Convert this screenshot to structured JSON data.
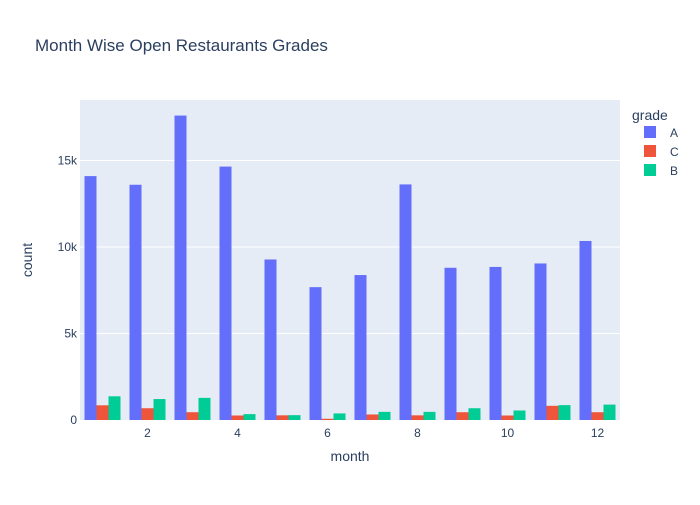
{
  "chart_data": {
    "type": "bar",
    "title": "Month Wise Open Restaurants Grades",
    "xlabel": "month",
    "ylabel": "count",
    "x": [
      1,
      2,
      3,
      4,
      5,
      6,
      7,
      8,
      9,
      10,
      11,
      12
    ],
    "x_ticks": [
      2,
      4,
      6,
      8,
      10,
      12
    ],
    "y_ticks": [
      0,
      5000,
      10000,
      15000
    ],
    "y_tick_labels": [
      "0",
      "5k",
      "10k",
      "15k"
    ],
    "ylim": [
      0,
      18500
    ],
    "xlim": [
      0.5,
      12.5
    ],
    "grid": true,
    "background_color": "#e5ecf6",
    "legend": {
      "title": "grade",
      "placement": "right"
    },
    "series": [
      {
        "name": "A",
        "color": "#636efa",
        "values": [
          14100,
          13600,
          17600,
          14650,
          9280,
          7680,
          8380,
          13620,
          8800,
          8850,
          9050,
          10350
        ]
      },
      {
        "name": "C",
        "color": "#ef553b",
        "values": [
          850,
          680,
          450,
          260,
          270,
          70,
          320,
          270,
          450,
          260,
          820,
          450
        ]
      },
      {
        "name": "B",
        "color": "#00cc96",
        "values": [
          1370,
          1210,
          1280,
          340,
          280,
          380,
          470,
          470,
          680,
          550,
          860,
          890
        ]
      }
    ]
  }
}
